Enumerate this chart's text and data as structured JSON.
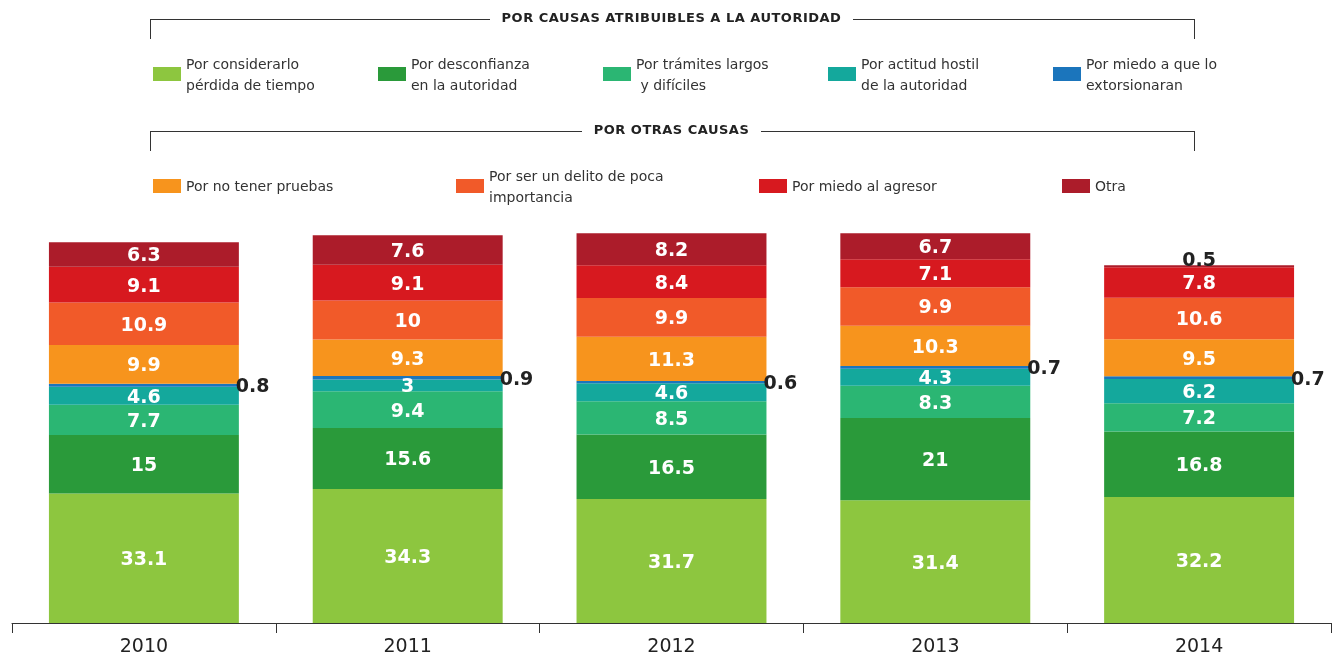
{
  "chart_data": {
    "type": "bar",
    "stacked": true,
    "data_labels": true,
    "legend": "top",
    "categories": [
      "2010",
      "2011",
      "2012",
      "2013",
      "2014"
    ],
    "annotations": [
      "POR CAUSAS ATRIBUIBLES A LA AUTORIDAD",
      "POR OTRAS CAUSAS"
    ],
    "series": [
      {
        "name": "Por considerarlo pérdida de tiempo",
        "color": "#8dc63f",
        "values": [
          33.1,
          34.3,
          31.7,
          31.4,
          32.2
        ]
      },
      {
        "name": "Por desconfianza en la autoridad",
        "color": "#2a9a3a",
        "values": [
          15,
          15.6,
          16.5,
          21,
          16.8
        ]
      },
      {
        "name": "Por trámites largos y difíciles",
        "color": "#2bb673",
        "values": [
          7.7,
          9.4,
          8.5,
          8.3,
          7.2
        ]
      },
      {
        "name": "Por actitud hostil de la autoridad",
        "color": "#14a89c",
        "values": [
          4.6,
          3,
          4.6,
          4.3,
          6.2
        ]
      },
      {
        "name": "Por miedo a que lo extorsionaran",
        "color": "#1b75bc",
        "values": [
          0.8,
          0.9,
          0.6,
          0.7,
          0.7
        ]
      },
      {
        "name": "Por no tener pruebas",
        "color": "#f7941d",
        "values": [
          9.9,
          9.3,
          11.3,
          10.3,
          9.5
        ]
      },
      {
        "name": "Por ser un delito de poca importancia",
        "color": "#f15a29",
        "values": [
          10.9,
          10,
          9.9,
          9.9,
          10.6
        ]
      },
      {
        "name": "Por miedo al agresor",
        "color": "#d7191f",
        "values": [
          9.1,
          9.1,
          8.4,
          7.1,
          7.8
        ]
      },
      {
        "name": "Otra",
        "color": "#ac1c2a",
        "values": [
          6.3,
          7.6,
          8.2,
          6.7,
          0.5
        ]
      }
    ]
  }
}
